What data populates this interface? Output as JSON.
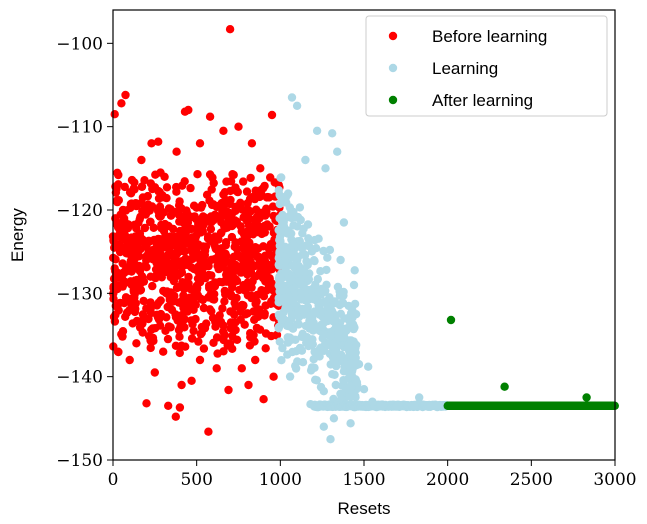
{
  "chart_data": {
    "type": "scatter",
    "xlabel": "Resets",
    "ylabel": "Energy",
    "xlim": [
      0,
      3000
    ],
    "ylim": [
      -150,
      -96
    ],
    "xticks": [
      0,
      500,
      1000,
      1500,
      2000,
      2500,
      3000
    ],
    "yticks": [
      -100,
      -110,
      -120,
      -130,
      -140,
      -150
    ],
    "xtick_labels": [
      "0",
      "500",
      "1000",
      "1500",
      "2000",
      "2500",
      "3000"
    ],
    "ytick_labels": [
      "−100",
      "−110",
      "−120",
      "−130",
      "−140",
      "−150"
    ],
    "legend_position": "top-right",
    "grid": false,
    "series": [
      {
        "name": "Before learning",
        "color": "#ff0000",
        "x_range": [
          0,
          1000
        ],
        "y_band": [
          -137,
          -116
        ],
        "points": [
          [
            700,
            -98.3
          ],
          [
            50,
            -107.2
          ],
          [
            75,
            -106.2
          ],
          [
            10,
            -108.5
          ],
          [
            270,
            -111.8
          ],
          [
            60,
            -120
          ],
          [
            170,
            -114
          ],
          [
            230,
            -112
          ],
          [
            430,
            -108.2
          ],
          [
            450,
            -108
          ],
          [
            580,
            -108.8
          ],
          [
            660,
            -110.5
          ],
          [
            750,
            -110
          ],
          [
            830,
            -112
          ],
          [
            950,
            -108.6
          ],
          [
            880,
            -115
          ],
          [
            990,
            -117
          ],
          [
            520,
            -112
          ],
          [
            380,
            -113
          ],
          [
            200,
            -143.2
          ],
          [
            330,
            -143.5
          ],
          [
            400,
            -143.7
          ],
          [
            375,
            -144.8
          ],
          [
            570,
            -146.6
          ],
          [
            410,
            -141
          ],
          [
            470,
            -140.5
          ],
          [
            620,
            -139
          ],
          [
            690,
            -141.6
          ],
          [
            770,
            -139
          ],
          [
            810,
            -141
          ],
          [
            900,
            -142.7
          ],
          [
            100,
            -138
          ],
          [
            30,
            -137
          ],
          [
            250,
            -139.5
          ],
          [
            520,
            -138
          ],
          [
            850,
            -138
          ],
          [
            960,
            -140
          ],
          [
            140,
            -136
          ],
          [
            980,
            -135
          ],
          [
            700,
            -136
          ],
          [
            300,
            -137
          ]
        ]
      },
      {
        "name": "Learning",
        "color": "#add8e6",
        "x_range": [
          1000,
          2000
        ],
        "y_band": [
          -143,
          -118
        ],
        "points": [
          [
            1070,
            -106.5
          ],
          [
            1100,
            -107.5
          ],
          [
            1220,
            -110.5
          ],
          [
            1310,
            -110.8
          ],
          [
            1340,
            -113
          ],
          [
            1270,
            -115
          ],
          [
            1150,
            -114
          ],
          [
            1380,
            -121.5
          ],
          [
            1470,
            -138.5
          ],
          [
            1500,
            -141.5
          ],
          [
            1525,
            -138.8
          ],
          [
            1550,
            -143
          ],
          [
            1300,
            -147.5
          ],
          [
            1260,
            -146
          ],
          [
            1320,
            -145
          ],
          [
            1420,
            -145.6
          ],
          [
            1180,
            -143.3
          ],
          [
            1440,
            -129
          ],
          [
            1400,
            -133
          ],
          [
            1360,
            -126
          ],
          [
            1830,
            -142.5
          ],
          [
            1940,
            -143.5
          ],
          [
            1600,
            -143.5
          ],
          [
            1700,
            -143.5
          ],
          [
            1800,
            -143.5
          ],
          [
            1900,
            -143.5
          ]
        ]
      },
      {
        "name": "After learning",
        "color": "#008000",
        "x_range": [
          2000,
          3000
        ],
        "y_baseline": -143.5,
        "points": [
          [
            2020,
            -133.2
          ],
          [
            2340,
            -141.2
          ],
          [
            2830,
            -142.5
          ]
        ]
      }
    ]
  }
}
